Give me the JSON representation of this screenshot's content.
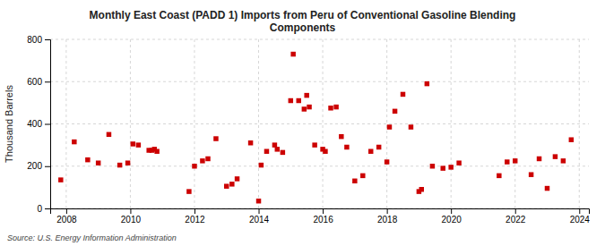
{
  "chart_data": {
    "type": "scatter",
    "title": "Monthly East Coast (PADD 1) Imports from Peru of Conventional Gasoline Blending\nComponents",
    "ylabel": "Thousand Barrels",
    "source": "Source: U.S. Energy Information Administration",
    "color": "#cc0000",
    "marker": "square",
    "grid": true,
    "xlim": [
      2007.5,
      2024.3
    ],
    "ylim": [
      0,
      800
    ],
    "xticks": [
      2008,
      2010,
      2012,
      2014,
      2016,
      2018,
      2020,
      2022,
      2024
    ],
    "yticks": [
      0,
      200,
      400,
      600,
      800
    ],
    "x": [
      2007.83,
      2008.25,
      2008.67,
      2009.0,
      2009.33,
      2009.67,
      2009.92,
      2010.08,
      2010.25,
      2010.58,
      2010.67,
      2010.75,
      2010.83,
      2011.83,
      2012.0,
      2012.25,
      2012.42,
      2012.67,
      2013.0,
      2013.17,
      2013.33,
      2013.75,
      2014.0,
      2014.08,
      2014.25,
      2014.5,
      2014.58,
      2014.75,
      2015.0,
      2015.08,
      2015.25,
      2015.42,
      2015.5,
      2015.58,
      2015.75,
      2016.0,
      2016.08,
      2016.25,
      2016.42,
      2016.58,
      2016.75,
      2017.0,
      2017.25,
      2017.5,
      2017.75,
      2018.0,
      2018.08,
      2018.25,
      2018.5,
      2018.75,
      2019.0,
      2019.08,
      2019.25,
      2019.42,
      2019.75,
      2020.0,
      2020.25,
      2021.5,
      2021.75,
      2022.0,
      2022.5,
      2022.75,
      2023.0,
      2023.25,
      2023.5,
      2023.75
    ],
    "values": [
      135,
      315,
      230,
      215,
      350,
      205,
      215,
      305,
      300,
      275,
      275,
      280,
      270,
      80,
      200,
      225,
      235,
      330,
      105,
      115,
      140,
      310,
      35,
      205,
      270,
      300,
      280,
      265,
      510,
      730,
      510,
      470,
      535,
      480,
      300,
      280,
      270,
      475,
      480,
      340,
      290,
      130,
      155,
      270,
      290,
      220,
      385,
      460,
      540,
      385,
      80,
      90,
      590,
      200,
      190,
      195,
      215,
      155,
      220,
      225,
      160,
      235,
      95,
      245,
      225,
      325
    ]
  }
}
